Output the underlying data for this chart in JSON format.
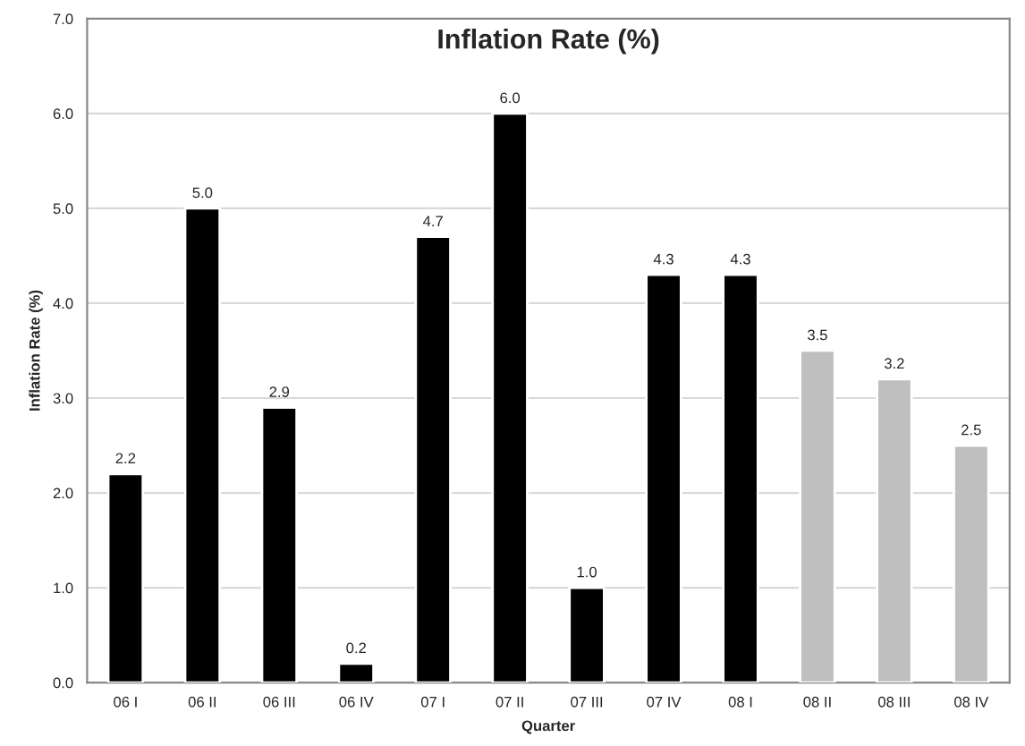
{
  "chart_data": {
    "type": "bar",
    "title": "Inflation Rate (%)",
    "xlabel": "Quarter",
    "ylabel": "Inflation Rate (%)",
    "categories": [
      "06 I",
      "06 II",
      "06 III",
      "06 IV",
      "07 I",
      "07 II",
      "07 III",
      "07 IV",
      "08 I",
      "08 II",
      "08 III",
      "08 IV"
    ],
    "values": [
      2.2,
      5.0,
      2.9,
      0.2,
      4.7,
      6.0,
      1.0,
      4.3,
      4.3,
      3.5,
      3.2,
      2.5
    ],
    "colors": [
      "#000000",
      "#000000",
      "#000000",
      "#000000",
      "#000000",
      "#000000",
      "#000000",
      "#000000",
      "#000000",
      "#bfbfbf",
      "#bfbfbf",
      "#bfbfbf"
    ],
    "value_labels": [
      "2.2",
      "5.0",
      "2.9",
      "0.2",
      "4.7",
      "6.0",
      "1.0",
      "4.3",
      "4.3",
      "3.5",
      "3.2",
      "2.5"
    ],
    "ylim": [
      0,
      7
    ],
    "yticks": [
      {
        "value": 0,
        "label": "0.0"
      },
      {
        "value": 1,
        "label": "1.0"
      },
      {
        "value": 2,
        "label": "2.0"
      },
      {
        "value": 3,
        "label": "3.0"
      },
      {
        "value": 4,
        "label": "4.0"
      },
      {
        "value": 5,
        "label": "5.0"
      },
      {
        "value": 6,
        "label": "6.0"
      },
      {
        "value": 7,
        "label": "7.0"
      }
    ],
    "grid": "y"
  }
}
